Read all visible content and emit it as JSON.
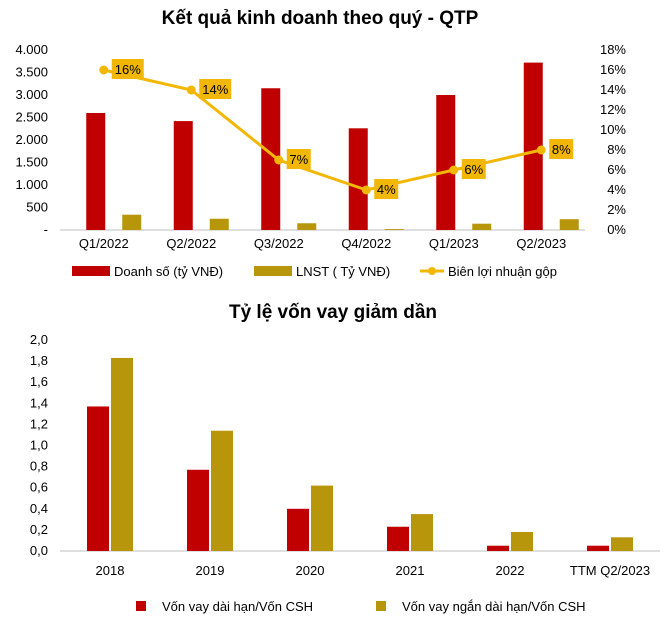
{
  "chart_data": [
    {
      "type": "bar+line",
      "title": "Kết quả kinh doanh theo quý - QTP",
      "categories": [
        "Q1/2022",
        "Q2/2022",
        "Q3/2022",
        "Q4/2022",
        "Q1/2023",
        "Q2/2023"
      ],
      "series": [
        {
          "name": "Doanh số (tỷ VNĐ)",
          "type": "bar",
          "axis": "left",
          "color": "#C00000",
          "values": [
            2600,
            2420,
            3150,
            2260,
            3000,
            3720
          ]
        },
        {
          "name": "LNST ( Tỷ VNĐ)",
          "type": "bar",
          "axis": "left",
          "color": "#B8960C",
          "values": [
            340,
            250,
            150,
            20,
            140,
            240
          ]
        },
        {
          "name": "Biên lợi nhuận gộp",
          "type": "line",
          "axis": "right",
          "color": "#F2B705",
          "values": [
            16,
            14,
            7,
            4,
            6,
            8
          ],
          "labels": [
            "16%",
            "14%",
            "7%",
            "4%",
            "6%",
            "8%"
          ]
        }
      ],
      "y_left": {
        "min": 0,
        "max": 4000,
        "ticks": [
          "-",
          "500",
          "1.000",
          "1.500",
          "2.000",
          "2.500",
          "3.000",
          "3.500",
          "4.000"
        ]
      },
      "y_right": {
        "min": 0,
        "max": 18,
        "ticks": [
          "0%",
          "2%",
          "4%",
          "6%",
          "8%",
          "10%",
          "12%",
          "14%",
          "16%",
          "18%"
        ]
      },
      "legend_position": "bottom",
      "grid": false
    },
    {
      "type": "bar",
      "title": "Tỷ lệ vốn vay giảm dần",
      "categories": [
        "2018",
        "2019",
        "2020",
        "2021",
        "2022",
        "TTM Q2/2023"
      ],
      "series": [
        {
          "name": "Vốn vay dài hạn/Vốn CSH",
          "color": "#C00000",
          "values": [
            1.37,
            0.77,
            0.4,
            0.23,
            0.05,
            0.05
          ]
        },
        {
          "name": "Vốn vay ngắn dài hạn/Vốn CSH",
          "color": "#B8960C",
          "values": [
            1.83,
            1.14,
            0.62,
            0.35,
            0.18,
            0.13
          ]
        }
      ],
      "y": {
        "min": 0,
        "max": 2.0,
        "ticks": [
          "0,0",
          "0,2",
          "0,4",
          "0,6",
          "0,8",
          "1,0",
          "1,2",
          "1,4",
          "1,6",
          "1,8",
          "2,0"
        ]
      },
      "legend_position": "bottom",
      "grid": false
    }
  ]
}
